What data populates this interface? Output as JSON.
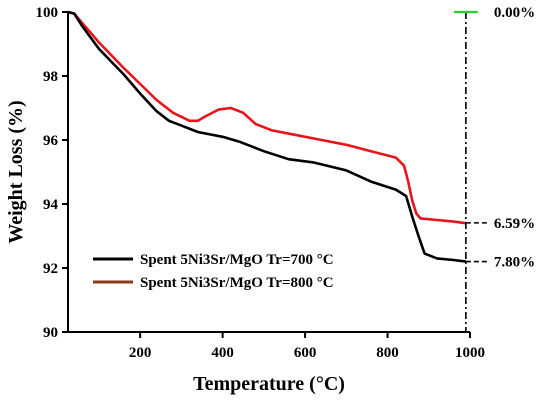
{
  "chart_data": {
    "type": "line",
    "xlabel": "Temperature (°C)",
    "ylabel": "Weight Loss (%)",
    "xlim": [
      25,
      1000
    ],
    "ylim": [
      90,
      100
    ],
    "xticks": [
      200,
      400,
      600,
      800,
      1000
    ],
    "yticks": [
      90,
      92,
      94,
      96,
      98,
      100
    ],
    "legend_position": "bottom-left",
    "series": [
      {
        "name": "Spent 5Ni3Sr/MgO Tr=700 °C",
        "color": "#000000",
        "x": [
          25,
          40,
          60,
          80,
          100,
          130,
          160,
          200,
          240,
          270,
          300,
          340,
          360,
          400,
          440,
          500,
          560,
          620,
          700,
          760,
          820,
          845,
          860,
          875,
          890,
          920,
          960,
          990
        ],
        "y": [
          100.0,
          99.95,
          99.55,
          99.2,
          98.85,
          98.45,
          98.05,
          97.45,
          96.9,
          96.6,
          96.45,
          96.25,
          96.2,
          96.1,
          95.95,
          95.65,
          95.4,
          95.3,
          95.05,
          94.7,
          94.45,
          94.25,
          93.6,
          93.0,
          92.45,
          92.3,
          92.25,
          92.2
        ]
      },
      {
        "name": "Spent 5Ni3Sr/MgO Tr=800 °C",
        "color": "#e8141c",
        "x": [
          25,
          40,
          60,
          80,
          100,
          130,
          160,
          200,
          240,
          280,
          320,
          340,
          360,
          390,
          420,
          450,
          480,
          520,
          580,
          640,
          700,
          760,
          820,
          840,
          850,
          860,
          870,
          880,
          920,
          960,
          990
        ],
        "y": [
          100.0,
          99.95,
          99.65,
          99.35,
          99.05,
          98.65,
          98.25,
          97.75,
          97.25,
          96.85,
          96.6,
          96.6,
          96.75,
          96.95,
          97.0,
          96.85,
          96.5,
          96.3,
          96.15,
          96.0,
          95.85,
          95.65,
          95.45,
          95.2,
          94.7,
          94.1,
          93.7,
          93.55,
          93.5,
          93.45,
          93.4
        ]
      }
    ],
    "annotations": [
      {
        "label": "0.00%",
        "y": 100.0,
        "color": "#2bd12b"
      },
      {
        "label": "6.59%",
        "y": 93.41,
        "color": "#000000"
      },
      {
        "label": "7.80%",
        "y": 92.2,
        "color": "#000000"
      }
    ],
    "reference_line_x": 990
  }
}
